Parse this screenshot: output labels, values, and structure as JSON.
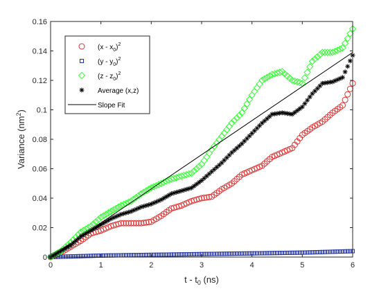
{
  "chart_data": {
    "type": "scatter",
    "xlabel": {
      "base": "t - t",
      "sub": "0",
      "rest": " (ns)"
    },
    "ylabel": {
      "base": "Variance (nm",
      "sup": "2",
      "rest": ")"
    },
    "xlim": [
      0,
      6
    ],
    "ylim": [
      0,
      0.16
    ],
    "xticks": [
      "0",
      "1",
      "2",
      "3",
      "4",
      "5",
      "6"
    ],
    "yticks": [
      "0",
      "0.02",
      "0.04",
      "0.06",
      "0.08",
      "0.1",
      "0.12",
      "0.14",
      "0.16"
    ],
    "grid": false,
    "legend_position": "top-left",
    "legend": [
      {
        "base": "(x - x",
        "sub": "0",
        "mid": ")",
        "sup": "2"
      },
      {
        "base": "(y - y",
        "sub": "0",
        "mid": ")",
        "sup": "2"
      },
      {
        "base": "(z - z",
        "sub": "0",
        "mid": ")",
        "sup": "2"
      },
      {
        "base": "Average (x,z)",
        "sub": "",
        "mid": "",
        "sup": ""
      },
      {
        "base": "Slope Fit",
        "sub": "",
        "mid": "",
        "sup": ""
      }
    ],
    "series": [
      {
        "marker": "circle",
        "color": "#e03030",
        "anchors": [
          [
            0,
            0
          ],
          [
            0.2,
            0.003
          ],
          [
            0.4,
            0.007
          ],
          [
            0.6,
            0.011
          ],
          [
            0.8,
            0.016
          ],
          [
            1.0,
            0.018
          ],
          [
            1.2,
            0.021
          ],
          [
            1.4,
            0.023
          ],
          [
            1.6,
            0.023
          ],
          [
            1.8,
            0.023
          ],
          [
            2.0,
            0.024
          ],
          [
            2.2,
            0.028
          ],
          [
            2.4,
            0.033
          ],
          [
            2.6,
            0.035
          ],
          [
            2.8,
            0.038
          ],
          [
            3.0,
            0.04
          ],
          [
            3.2,
            0.041
          ],
          [
            3.4,
            0.046
          ],
          [
            3.6,
            0.05
          ],
          [
            3.8,
            0.056
          ],
          [
            4.0,
            0.059
          ],
          [
            4.2,
            0.062
          ],
          [
            4.4,
            0.068
          ],
          [
            4.6,
            0.071
          ],
          [
            4.8,
            0.074
          ],
          [
            5.0,
            0.083
          ],
          [
            5.2,
            0.088
          ],
          [
            5.4,
            0.092
          ],
          [
            5.6,
            0.098
          ],
          [
            5.8,
            0.103
          ],
          [
            6.0,
            0.118
          ]
        ]
      },
      {
        "marker": "square",
        "color": "#1f2f9f",
        "anchors": [
          [
            0,
            0
          ],
          [
            1.0,
            0.001
          ],
          [
            2.0,
            0.0015
          ],
          [
            3.0,
            0.002
          ],
          [
            4.0,
            0.0025
          ],
          [
            5.0,
            0.003
          ],
          [
            6.0,
            0.004
          ]
        ]
      },
      {
        "marker": "diamond",
        "color": "#33ff33",
        "anchors": [
          [
            0,
            0
          ],
          [
            0.2,
            0.004
          ],
          [
            0.4,
            0.01
          ],
          [
            0.6,
            0.017
          ],
          [
            0.8,
            0.021
          ],
          [
            1.0,
            0.027
          ],
          [
            1.2,
            0.031
          ],
          [
            1.4,
            0.035
          ],
          [
            1.6,
            0.038
          ],
          [
            1.8,
            0.043
          ],
          [
            2.0,
            0.047
          ],
          [
            2.2,
            0.05
          ],
          [
            2.4,
            0.053
          ],
          [
            2.6,
            0.055
          ],
          [
            2.8,
            0.057
          ],
          [
            3.0,
            0.063
          ],
          [
            3.2,
            0.073
          ],
          [
            3.4,
            0.082
          ],
          [
            3.6,
            0.091
          ],
          [
            3.8,
            0.098
          ],
          [
            4.0,
            0.11
          ],
          [
            4.2,
            0.12
          ],
          [
            4.4,
            0.124
          ],
          [
            4.6,
            0.126
          ],
          [
            4.8,
            0.12
          ],
          [
            5.0,
            0.118
          ],
          [
            5.2,
            0.133
          ],
          [
            5.4,
            0.139
          ],
          [
            5.6,
            0.139
          ],
          [
            5.8,
            0.142
          ],
          [
            6.0,
            0.155
          ]
        ]
      },
      {
        "marker": "asterisk",
        "color": "#000000",
        "anchors": [
          [
            0,
            0
          ],
          [
            0.2,
            0.004
          ],
          [
            0.4,
            0.008
          ],
          [
            0.6,
            0.014
          ],
          [
            0.8,
            0.018
          ],
          [
            1.0,
            0.022
          ],
          [
            1.2,
            0.026
          ],
          [
            1.4,
            0.029
          ],
          [
            1.6,
            0.031
          ],
          [
            1.8,
            0.034
          ],
          [
            2.0,
            0.036
          ],
          [
            2.2,
            0.039
          ],
          [
            2.4,
            0.043
          ],
          [
            2.6,
            0.045
          ],
          [
            2.8,
            0.047
          ],
          [
            3.0,
            0.052
          ],
          [
            3.2,
            0.058
          ],
          [
            3.4,
            0.064
          ],
          [
            3.6,
            0.071
          ],
          [
            3.8,
            0.077
          ],
          [
            4.0,
            0.084
          ],
          [
            4.2,
            0.091
          ],
          [
            4.4,
            0.097
          ],
          [
            4.6,
            0.098
          ],
          [
            4.8,
            0.097
          ],
          [
            5.0,
            0.102
          ],
          [
            5.2,
            0.111
          ],
          [
            5.4,
            0.118
          ],
          [
            5.6,
            0.119
          ],
          [
            5.8,
            0.122
          ],
          [
            6.0,
            0.137
          ]
        ]
      },
      {
        "marker": "line",
        "color": "#000000",
        "anchors": [
          [
            0,
            0
          ],
          [
            6.0,
            0.139
          ]
        ]
      }
    ]
  }
}
